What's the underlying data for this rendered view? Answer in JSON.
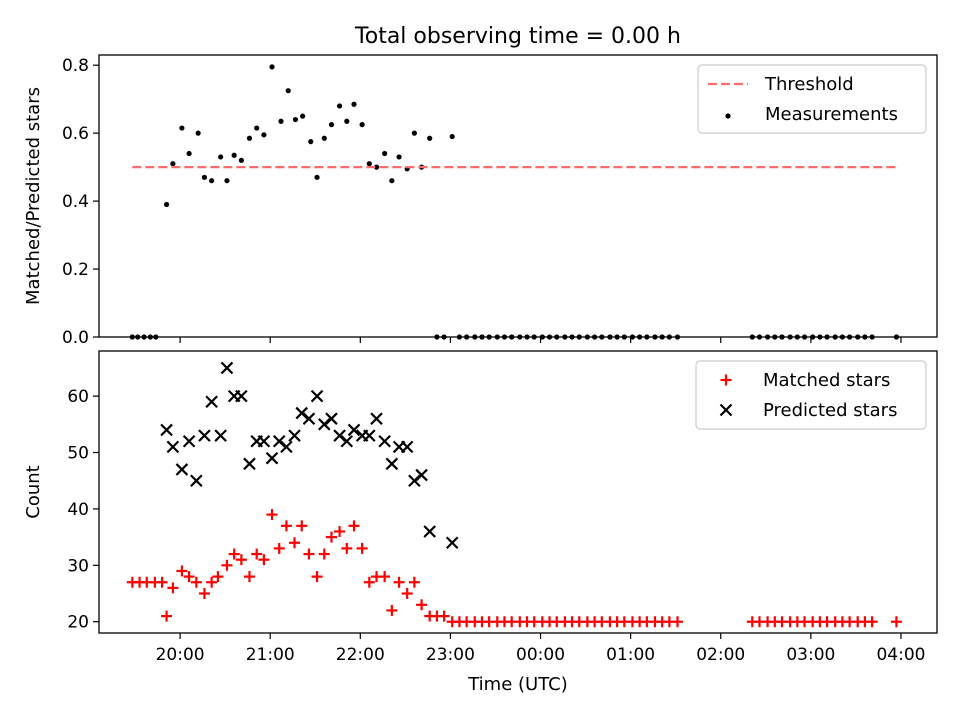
{
  "figure": {
    "title": "Total observing time = 0.00 h",
    "xlabel": "Time (UTC)",
    "xtick_labels": [
      "20:00",
      "21:00",
      "22:00",
      "23:00",
      "00:00",
      "01:00",
      "02:00",
      "03:00",
      "04:00"
    ]
  },
  "colors": {
    "threshold": "#ff6b6b",
    "measurements": "#000000",
    "matched": "#ff0000",
    "predicted": "#000000"
  },
  "chart_data": [
    {
      "type": "scatter",
      "panel": "ratio",
      "ylabel": "Matched/Predicted stars",
      "xlabel": "",
      "x_unit": "hours (UTC, 24+ = next day)",
      "xlim": [
        19.1,
        28.4
      ],
      "ylim": [
        0,
        0.83
      ],
      "yticks": [
        "0.0",
        "0.2",
        "0.4",
        "0.6",
        "0.8"
      ],
      "legend": {
        "position": "top-right",
        "entries": [
          "Threshold",
          "Measurements"
        ]
      },
      "threshold": {
        "name": "Threshold",
        "y": 0.5,
        "x_start": 19.47,
        "x_end": 27.97,
        "style": "dashed"
      },
      "series": [
        {
          "name": "Measurements",
          "points": [
            [
              19.47,
              0
            ],
            [
              19.53,
              0
            ],
            [
              19.6,
              0
            ],
            [
              19.67,
              0
            ],
            [
              19.73,
              0
            ],
            [
              19.85,
              0.39
            ],
            [
              19.92,
              0.51
            ],
            [
              20.02,
              0.615
            ],
            [
              20.1,
              0.54
            ],
            [
              20.2,
              0.6
            ],
            [
              20.27,
              0.47
            ],
            [
              20.35,
              0.46
            ],
            [
              20.45,
              0.53
            ],
            [
              20.52,
              0.46
            ],
            [
              20.6,
              0.535
            ],
            [
              20.68,
              0.52
            ],
            [
              20.77,
              0.585
            ],
            [
              20.85,
              0.615
            ],
            [
              20.93,
              0.595
            ],
            [
              21.02,
              0.795
            ],
            [
              21.12,
              0.635
            ],
            [
              21.2,
              0.725
            ],
            [
              21.28,
              0.64
            ],
            [
              21.36,
              0.65
            ],
            [
              21.45,
              0.575
            ],
            [
              21.52,
              0.47
            ],
            [
              21.6,
              0.585
            ],
            [
              21.68,
              0.625
            ],
            [
              21.77,
              0.68
            ],
            [
              21.85,
              0.635
            ],
            [
              21.93,
              0.685
            ],
            [
              22.02,
              0.625
            ],
            [
              22.1,
              0.51
            ],
            [
              22.18,
              0.5
            ],
            [
              22.27,
              0.54
            ],
            [
              22.35,
              0.46
            ],
            [
              22.43,
              0.53
            ],
            [
              22.52,
              0.495
            ],
            [
              22.6,
              0.6
            ],
            [
              22.68,
              0.5
            ],
            [
              22.77,
              0.585
            ],
            [
              22.85,
              0
            ],
            [
              22.93,
              0
            ],
            [
              23.02,
              0.59
            ],
            [
              23.1,
              0
            ],
            [
              23.18,
              0
            ],
            [
              23.27,
              0
            ],
            [
              23.35,
              0
            ],
            [
              23.43,
              0
            ],
            [
              23.52,
              0
            ],
            [
              23.6,
              0
            ],
            [
              23.68,
              0
            ],
            [
              23.77,
              0
            ],
            [
              23.85,
              0
            ],
            [
              23.93,
              0
            ],
            [
              24.02,
              0
            ],
            [
              24.1,
              0
            ],
            [
              24.18,
              0
            ],
            [
              24.27,
              0
            ],
            [
              24.35,
              0
            ],
            [
              24.43,
              0
            ],
            [
              24.52,
              0
            ],
            [
              24.6,
              0
            ],
            [
              24.68,
              0
            ],
            [
              24.77,
              0
            ],
            [
              24.85,
              0
            ],
            [
              24.93,
              0
            ],
            [
              25.02,
              0
            ],
            [
              25.1,
              0
            ],
            [
              25.18,
              0
            ],
            [
              25.27,
              0
            ],
            [
              25.35,
              0
            ],
            [
              25.43,
              0
            ],
            [
              25.52,
              0
            ],
            [
              26.35,
              0
            ],
            [
              26.43,
              0
            ],
            [
              26.52,
              0
            ],
            [
              26.6,
              0
            ],
            [
              26.68,
              0
            ],
            [
              26.77,
              0
            ],
            [
              26.85,
              0
            ],
            [
              26.93,
              0
            ],
            [
              27.02,
              0
            ],
            [
              27.1,
              0
            ],
            [
              27.18,
              0
            ],
            [
              27.27,
              0
            ],
            [
              27.35,
              0
            ],
            [
              27.43,
              0
            ],
            [
              27.52,
              0
            ],
            [
              27.6,
              0
            ],
            [
              27.68,
              0
            ],
            [
              27.95,
              0
            ]
          ]
        }
      ]
    },
    {
      "type": "scatter",
      "panel": "counts",
      "ylabel": "Count",
      "xlabel": "Time (UTC)",
      "x_unit": "hours (UTC, 24+ = next day)",
      "xlim": [
        19.1,
        28.4
      ],
      "ylim": [
        18,
        68
      ],
      "yticks": [
        "20",
        "30",
        "40",
        "50",
        "60"
      ],
      "legend": {
        "position": "top-right",
        "entries": [
          "Matched stars",
          "Predicted stars"
        ]
      },
      "series": [
        {
          "name": "Matched stars",
          "points": [
            [
              19.47,
              27
            ],
            [
              19.55,
              27
            ],
            [
              19.63,
              27
            ],
            [
              19.72,
              27
            ],
            [
              19.8,
              27
            ],
            [
              19.85,
              21
            ],
            [
              19.92,
              26
            ],
            [
              20.02,
              29
            ],
            [
              20.1,
              28
            ],
            [
              20.18,
              27
            ],
            [
              20.27,
              25
            ],
            [
              20.35,
              27
            ],
            [
              20.42,
              28
            ],
            [
              20.52,
              30
            ],
            [
              20.6,
              32
            ],
            [
              20.68,
              31
            ],
            [
              20.77,
              28
            ],
            [
              20.85,
              32
            ],
            [
              20.93,
              31
            ],
            [
              21.02,
              39
            ],
            [
              21.1,
              33
            ],
            [
              21.18,
              37
            ],
            [
              21.27,
              34
            ],
            [
              21.35,
              37
            ],
            [
              21.43,
              32
            ],
            [
              21.52,
              28
            ],
            [
              21.6,
              32
            ],
            [
              21.68,
              35
            ],
            [
              21.77,
              36
            ],
            [
              21.85,
              33
            ],
            [
              21.93,
              37
            ],
            [
              22.02,
              33
            ],
            [
              22.1,
              27
            ],
            [
              22.18,
              28
            ],
            [
              22.27,
              28
            ],
            [
              22.35,
              22
            ],
            [
              22.43,
              27
            ],
            [
              22.52,
              25
            ],
            [
              22.6,
              27
            ],
            [
              22.68,
              23
            ],
            [
              22.77,
              21
            ],
            [
              22.85,
              21
            ],
            [
              22.93,
              21
            ],
            [
              23.02,
              20
            ],
            [
              23.1,
              20
            ],
            [
              23.18,
              20
            ],
            [
              23.27,
              20
            ],
            [
              23.35,
              20
            ],
            [
              23.43,
              20
            ],
            [
              23.52,
              20
            ],
            [
              23.6,
              20
            ],
            [
              23.68,
              20
            ],
            [
              23.77,
              20
            ],
            [
              23.85,
              20
            ],
            [
              23.93,
              20
            ],
            [
              24.02,
              20
            ],
            [
              24.1,
              20
            ],
            [
              24.18,
              20
            ],
            [
              24.27,
              20
            ],
            [
              24.35,
              20
            ],
            [
              24.43,
              20
            ],
            [
              24.52,
              20
            ],
            [
              24.6,
              20
            ],
            [
              24.68,
              20
            ],
            [
              24.77,
              20
            ],
            [
              24.85,
              20
            ],
            [
              24.93,
              20
            ],
            [
              25.02,
              20
            ],
            [
              25.1,
              20
            ],
            [
              25.18,
              20
            ],
            [
              25.27,
              20
            ],
            [
              25.35,
              20
            ],
            [
              25.43,
              20
            ],
            [
              25.52,
              20
            ],
            [
              26.35,
              20
            ],
            [
              26.43,
              20
            ],
            [
              26.52,
              20
            ],
            [
              26.6,
              20
            ],
            [
              26.68,
              20
            ],
            [
              26.77,
              20
            ],
            [
              26.85,
              20
            ],
            [
              26.93,
              20
            ],
            [
              27.02,
              20
            ],
            [
              27.1,
              20
            ],
            [
              27.18,
              20
            ],
            [
              27.27,
              20
            ],
            [
              27.35,
              20
            ],
            [
              27.43,
              20
            ],
            [
              27.52,
              20
            ],
            [
              27.6,
              20
            ],
            [
              27.68,
              20
            ],
            [
              27.95,
              20
            ]
          ]
        },
        {
          "name": "Predicted stars",
          "points": [
            [
              19.85,
              54
            ],
            [
              19.92,
              51
            ],
            [
              20.02,
              47
            ],
            [
              20.1,
              52
            ],
            [
              20.18,
              45
            ],
            [
              20.27,
              53
            ],
            [
              20.35,
              59
            ],
            [
              20.45,
              53
            ],
            [
              20.52,
              65
            ],
            [
              20.6,
              60
            ],
            [
              20.68,
              60
            ],
            [
              20.77,
              48
            ],
            [
              20.85,
              52
            ],
            [
              20.93,
              52
            ],
            [
              21.02,
              49
            ],
            [
              21.1,
              52
            ],
            [
              21.18,
              51
            ],
            [
              21.27,
              53
            ],
            [
              21.35,
              57
            ],
            [
              21.43,
              56
            ],
            [
              21.52,
              60
            ],
            [
              21.6,
              55
            ],
            [
              21.68,
              56
            ],
            [
              21.77,
              53
            ],
            [
              21.85,
              52
            ],
            [
              21.93,
              54
            ],
            [
              22.02,
              53
            ],
            [
              22.1,
              53
            ],
            [
              22.18,
              56
            ],
            [
              22.27,
              52
            ],
            [
              22.35,
              48
            ],
            [
              22.43,
              51
            ],
            [
              22.52,
              51
            ],
            [
              22.6,
              45
            ],
            [
              22.68,
              46
            ],
            [
              22.77,
              36
            ],
            [
              23.02,
              34
            ]
          ]
        }
      ]
    }
  ]
}
